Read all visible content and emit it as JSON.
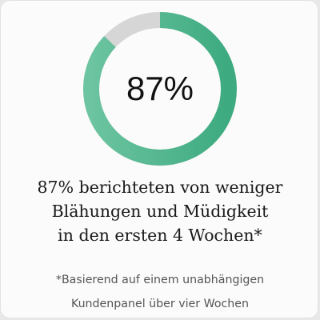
{
  "stat": {
    "percent_label": "87%",
    "progress": 0.87,
    "fill_color": "#3daa80",
    "fill_color_light": "#6cc4a0",
    "track_color": "#d6d6d6"
  },
  "headline": {
    "line1": "87% berichteten von weniger",
    "line2": "Blähungen und Müdigkeit",
    "line3": "in den ersten 4 Wochen*"
  },
  "footnote": {
    "line1": "*Basierend auf einem unabhängigen",
    "line2": "Kundenpanel über vier Wochen"
  }
}
